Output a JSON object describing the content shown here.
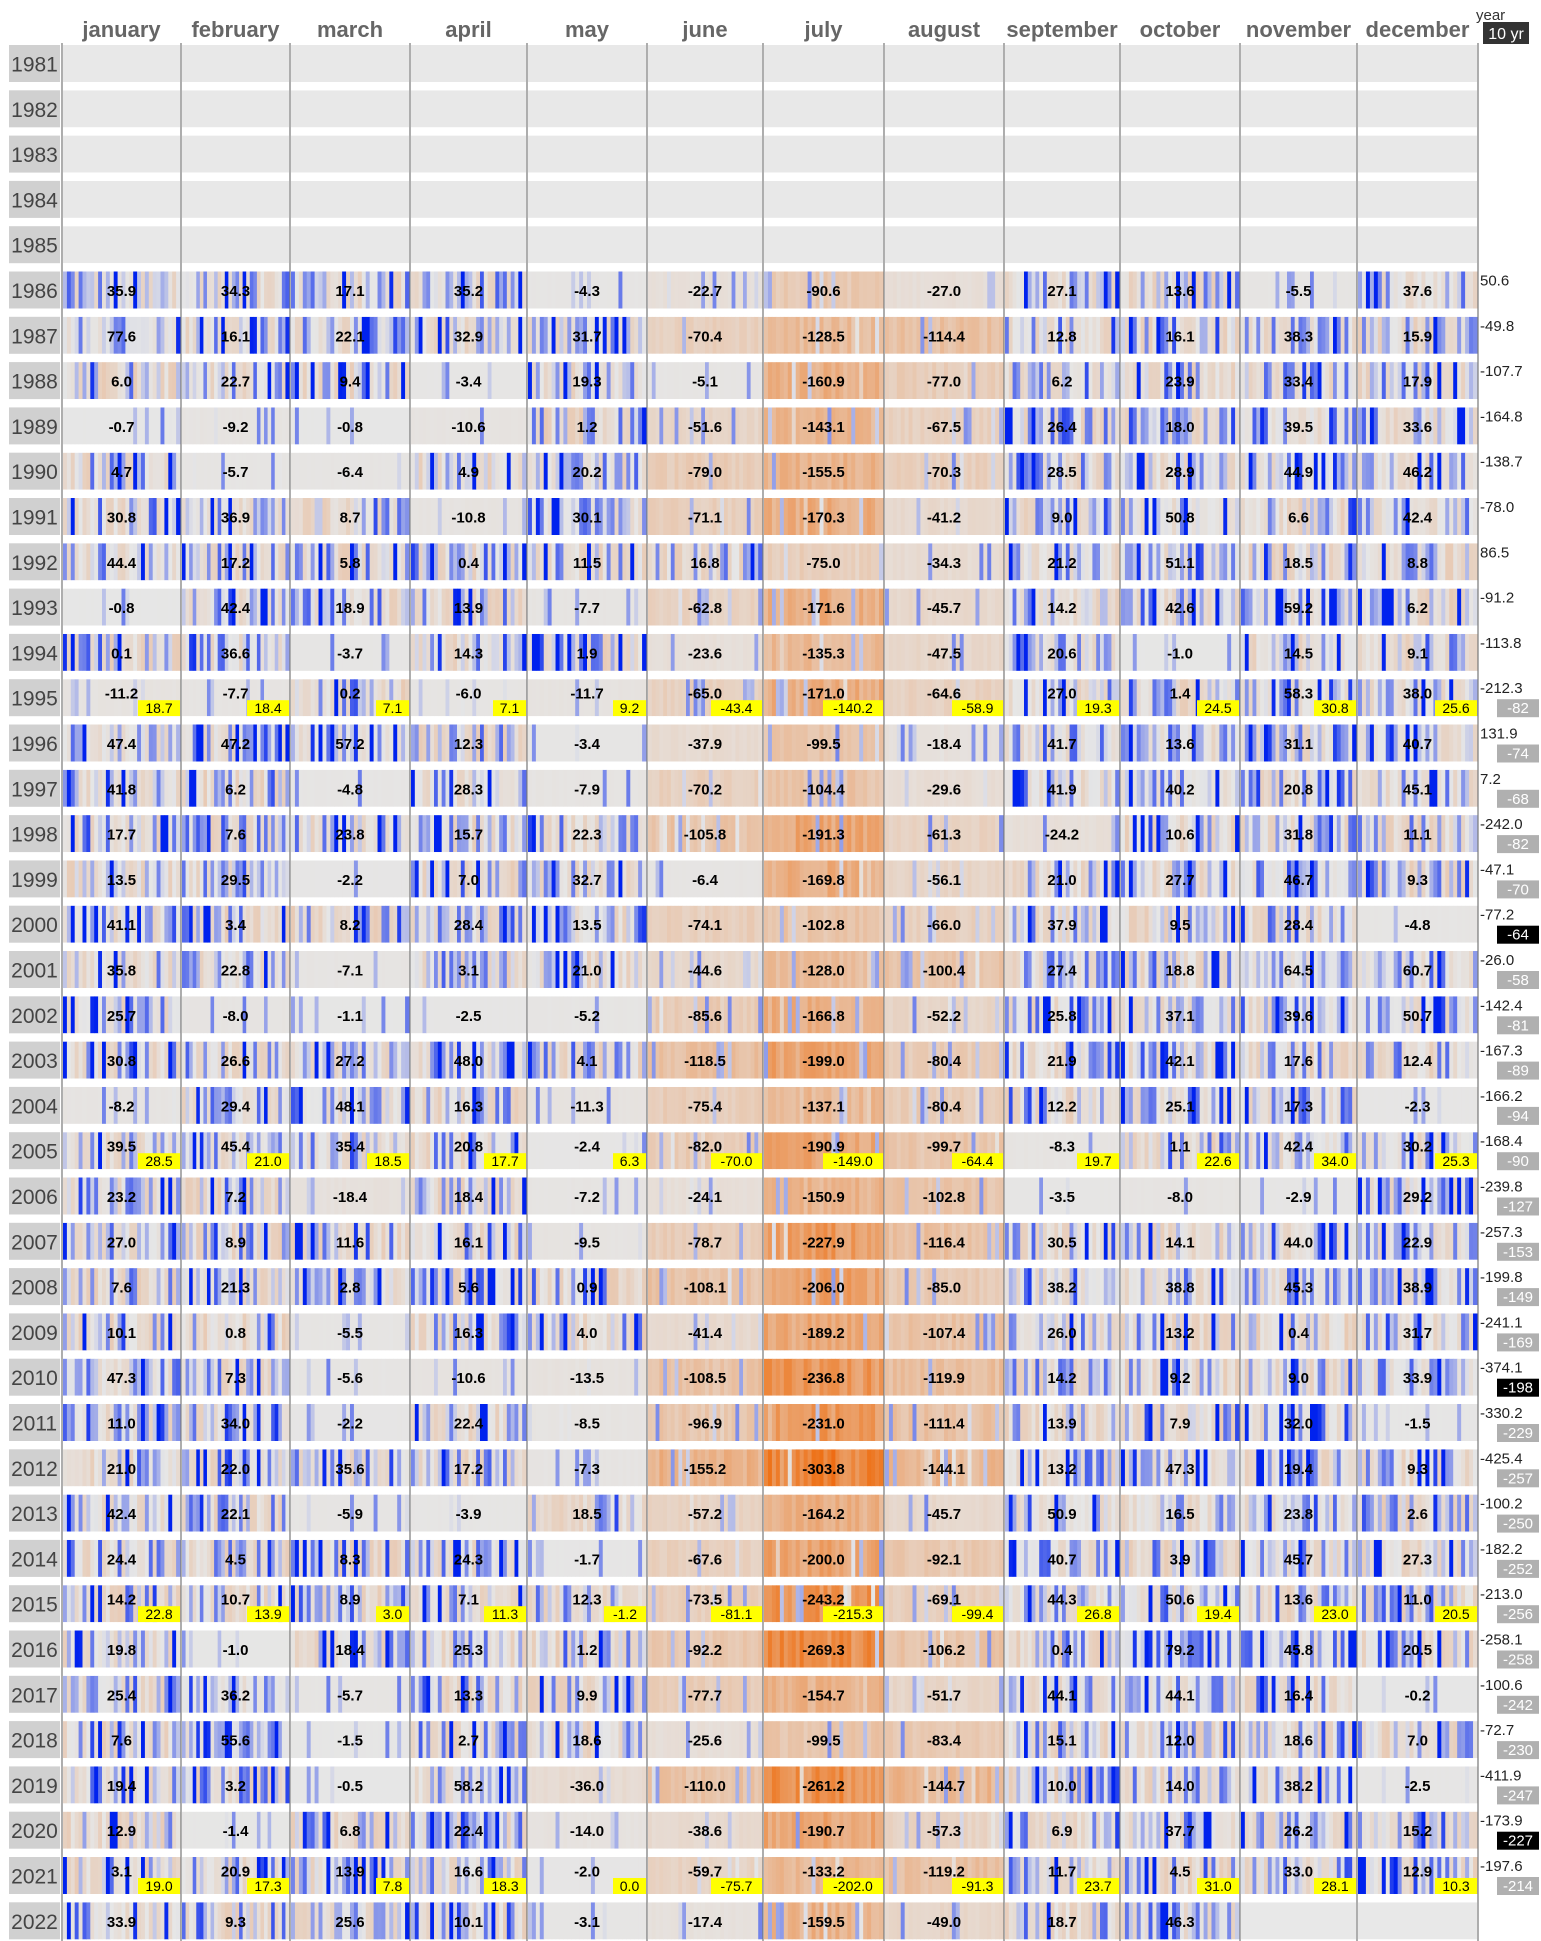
{
  "header": {
    "year_label": "year",
    "ten_yr_label": "10 yr"
  },
  "chart_data": {
    "type": "heatmap",
    "months": [
      "january",
      "february",
      "march",
      "april",
      "may",
      "june",
      "july",
      "august",
      "september",
      "october",
      "november",
      "december"
    ],
    "years": [
      1981,
      1982,
      1983,
      1984,
      1985,
      1986,
      1987,
      1988,
      1989,
      1990,
      1991,
      1992,
      1993,
      1994,
      1995,
      1996,
      1997,
      1998,
      1999,
      2000,
      2001,
      2002,
      2003,
      2004,
      2005,
      2006,
      2007,
      2008,
      2009,
      2010,
      2011,
      2012,
      2013,
      2014,
      2015,
      2016,
      2017,
      2018,
      2019,
      2020,
      2021,
      2022
    ],
    "values": [
      null,
      null,
      null,
      null,
      null,
      [
        "35.9",
        "34.3",
        "17.1",
        "35.2",
        "-4.3",
        "-22.7",
        "-90.6",
        "-27.0",
        "27.1",
        "13.6",
        "-5.5",
        "37.6"
      ],
      [
        "77.6",
        "16.1",
        "22.1",
        "32.9",
        "31.7",
        "-70.4",
        "-128.5",
        "-114.4",
        "12.8",
        "16.1",
        "38.3",
        "15.9"
      ],
      [
        "6.0",
        "22.7",
        "9.4",
        "-3.4",
        "19.3",
        "-5.1",
        "-160.9",
        "-77.0",
        "6.2",
        "23.9",
        "33.4",
        "17.9"
      ],
      [
        "-0.7",
        "-9.2",
        "-0.8",
        "-10.6",
        "1.2",
        "-51.6",
        "-143.1",
        "-67.5",
        "26.4",
        "18.0",
        "39.5",
        "33.6"
      ],
      [
        "4.7",
        "-5.7",
        "-6.4",
        "4.9",
        "20.2",
        "-79.0",
        "-155.5",
        "-70.3",
        "28.5",
        "28.9",
        "44.9",
        "46.2"
      ],
      [
        "30.8",
        "36.9",
        "8.7",
        "-10.8",
        "30.1",
        "-71.1",
        "-170.3",
        "-41.2",
        "9.0",
        "50.8",
        "6.6",
        "42.4"
      ],
      [
        "44.4",
        "17.2",
        "5.8",
        "0.4",
        "11.5",
        "16.8",
        "-75.0",
        "-34.3",
        "21.2",
        "51.1",
        "18.5",
        "8.8"
      ],
      [
        "-0.8",
        "42.4",
        "18.9",
        "13.9",
        "-7.7",
        "-62.8",
        "-171.6",
        "-45.7",
        "14.2",
        "42.6",
        "59.2",
        "6.2"
      ],
      [
        "0.1",
        "36.6",
        "-3.7",
        "14.3",
        "1.9",
        "-23.6",
        "-135.3",
        "-47.5",
        "20.6",
        "-1.0",
        "14.5",
        "9.1"
      ],
      [
        "-11.2",
        "-7.7",
        "0.2",
        "-6.0",
        "-11.7",
        "-65.0",
        "-171.0",
        "-64.6",
        "27.0",
        "1.4",
        "58.3",
        "38.0"
      ],
      [
        "47.4",
        "47.2",
        "57.2",
        "12.3",
        "-3.4",
        "-37.9",
        "-99.5",
        "-18.4",
        "41.7",
        "13.6",
        "31.1",
        "40.7"
      ],
      [
        "41.8",
        "6.2",
        "-4.8",
        "28.3",
        "-7.9",
        "-70.2",
        "-104.4",
        "-29.6",
        "41.9",
        "40.2",
        "20.8",
        "45.1"
      ],
      [
        "17.7",
        "7.6",
        "23.8",
        "15.7",
        "22.3",
        "-105.8",
        "-191.3",
        "-61.3",
        "-24.2",
        "10.6",
        "31.8",
        "11.1"
      ],
      [
        "13.5",
        "29.5",
        "-2.2",
        "7.0",
        "32.7",
        "-6.4",
        "-169.8",
        "-56.1",
        "21.0",
        "27.7",
        "46.7",
        "9.3"
      ],
      [
        "41.1",
        "3.4",
        "8.2",
        "28.4",
        "13.5",
        "-74.1",
        "-102.8",
        "-66.0",
        "37.9",
        "9.5",
        "28.4",
        "-4.8"
      ],
      [
        "35.8",
        "22.8",
        "-7.1",
        "3.1",
        "21.0",
        "-44.6",
        "-128.0",
        "-100.4",
        "27.4",
        "18.8",
        "64.5",
        "60.7"
      ],
      [
        "25.7",
        "-8.0",
        "-1.1",
        "-2.5",
        "-5.2",
        "-85.6",
        "-166.8",
        "-52.2",
        "25.8",
        "37.1",
        "39.6",
        "50.7"
      ],
      [
        "30.8",
        "26.6",
        "27.2",
        "48.0",
        "4.1",
        "-118.5",
        "-199.0",
        "-80.4",
        "21.9",
        "42.1",
        "17.6",
        "12.4"
      ],
      [
        "-8.2",
        "29.4",
        "48.1",
        "16.3",
        "-11.3",
        "-75.4",
        "-137.1",
        "-80.4",
        "12.2",
        "25.1",
        "17.3",
        "-2.3"
      ],
      [
        "39.5",
        "45.4",
        "35.4",
        "20.8",
        "-2.4",
        "-82.0",
        "-190.9",
        "-99.7",
        "-8.3",
        "1.1",
        "42.4",
        "30.2"
      ],
      [
        "23.2",
        "7.2",
        "-18.4",
        "18.4",
        "-7.2",
        "-24.1",
        "-150.9",
        "-102.8",
        "-3.5",
        "-8.0",
        "-2.9",
        "29.2"
      ],
      [
        "27.0",
        "8.9",
        "11.6",
        "16.1",
        "-9.5",
        "-78.7",
        "-227.9",
        "-116.4",
        "30.5",
        "14.1",
        "44.0",
        "22.9"
      ],
      [
        "7.6",
        "21.3",
        "2.8",
        "5.6",
        "0.9",
        "-108.1",
        "-206.0",
        "-85.0",
        "38.2",
        "38.8",
        "45.3",
        "38.9"
      ],
      [
        "10.1",
        "0.8",
        "-5.5",
        "16.3",
        "4.0",
        "-41.4",
        "-189.2",
        "-107.4",
        "26.0",
        "13.2",
        "0.4",
        "31.7"
      ],
      [
        "47.3",
        "7.3",
        "-5.6",
        "-10.6",
        "-13.5",
        "-108.5",
        "-236.8",
        "-119.9",
        "14.2",
        "9.2",
        "9.0",
        "33.9"
      ],
      [
        "11.0",
        "34.0",
        "-2.2",
        "22.4",
        "-8.5",
        "-96.9",
        "-231.0",
        "-111.4",
        "13.9",
        "7.9",
        "32.0",
        "-1.5"
      ],
      [
        "21.0",
        "22.0",
        "35.6",
        "17.2",
        "-7.3",
        "-155.2",
        "-303.8",
        "-144.1",
        "13.2",
        "47.3",
        "19.4",
        "9.3"
      ],
      [
        "42.4",
        "22.1",
        "-5.9",
        "-3.9",
        "18.5",
        "-57.2",
        "-164.2",
        "-45.7",
        "50.9",
        "16.5",
        "23.8",
        "2.6"
      ],
      [
        "24.4",
        "4.5",
        "8.3",
        "24.3",
        "-1.7",
        "-67.6",
        "-200.0",
        "-92.1",
        "40.7",
        "3.9",
        "45.7",
        "27.3"
      ],
      [
        "14.2",
        "10.7",
        "8.9",
        "7.1",
        "12.3",
        "-73.5",
        "-243.2",
        "-69.1",
        "44.3",
        "50.6",
        "13.6",
        "11.0"
      ],
      [
        "19.8",
        "-1.0",
        "18.4",
        "25.3",
        "1.2",
        "-92.2",
        "-269.3",
        "-106.2",
        "0.4",
        "79.2",
        "45.8",
        "20.5"
      ],
      [
        "25.4",
        "36.2",
        "-5.7",
        "13.3",
        "9.9",
        "-77.7",
        "-154.7",
        "-51.7",
        "44.1",
        "44.1",
        "16.4",
        "-0.2"
      ],
      [
        "7.6",
        "55.6",
        "-1.5",
        "2.7",
        "18.6",
        "-25.6",
        "-99.5",
        "-83.4",
        "15.1",
        "12.0",
        "18.6",
        "7.0"
      ],
      [
        "19.4",
        "3.2",
        "-0.5",
        "58.2",
        "-36.0",
        "-110.0",
        "-261.2",
        "-144.7",
        "10.0",
        "14.0",
        "38.2",
        "-2.5"
      ],
      [
        "12.9",
        "-1.4",
        "6.8",
        "22.4",
        "-14.0",
        "-38.6",
        "-190.7",
        "-57.3",
        "6.9",
        "37.7",
        "26.2",
        "15.2"
      ],
      [
        "3.1",
        "20.9",
        "13.9",
        "16.6",
        "-2.0",
        "-59.7",
        "-133.2",
        "-119.2",
        "11.7",
        "4.5",
        "33.0",
        "12.9"
      ],
      [
        "33.9",
        "9.3",
        "25.6",
        "10.1",
        "-3.1",
        "-17.4",
        "-159.5",
        "-49.0",
        "18.7",
        "46.3",
        null,
        null
      ]
    ],
    "decade_averages": {
      "1995": [
        "18.7",
        "18.4",
        "7.1",
        "7.1",
        "9.2",
        "-43.4",
        "-140.2",
        "-58.9",
        "19.3",
        "24.5",
        "30.8",
        "25.6"
      ],
      "2005": [
        "28.5",
        "21.0",
        "18.5",
        "17.7",
        "6.3",
        "-70.0",
        "-149.0",
        "-64.4",
        "19.7",
        "22.6",
        "34.0",
        "25.3"
      ],
      "2015": [
        "22.8",
        "13.9",
        "3.0",
        "11.3",
        "-1.2",
        "-81.1",
        "-215.3",
        "-99.4",
        "26.8",
        "19.4",
        "23.0",
        "20.5"
      ],
      "2021": [
        "19.0",
        "17.3",
        "7.8",
        "18.3",
        "0.0",
        "-75.7",
        "-202.0",
        "-91.3",
        "23.7",
        "31.0",
        "28.1",
        "10.3"
      ]
    },
    "year_totals": [
      null,
      null,
      null,
      null,
      null,
      "50.6",
      "-49.8",
      "-107.7",
      "-164.8",
      "-138.7",
      "-78.0",
      "86.5",
      "-91.2",
      "-113.8",
      "-212.3",
      "131.9",
      "7.2",
      "-242.0",
      "-47.1",
      "-77.2",
      "-26.0",
      "-142.4",
      "-167.3",
      "-166.2",
      "-168.4",
      "-239.8",
      "-257.3",
      "-199.8",
      "-241.1",
      "-374.1",
      "-330.2",
      "-425.4",
      "-100.2",
      "-182.2",
      "-213.0",
      "-258.1",
      "-100.6",
      "-72.7",
      "-411.9",
      "-173.9",
      "-197.6",
      null
    ],
    "ten_year_avg": [
      null,
      null,
      null,
      null,
      null,
      null,
      null,
      null,
      null,
      null,
      null,
      null,
      null,
      null,
      "-82",
      "-74",
      "-68",
      "-82",
      "-70",
      "-64",
      "-58",
      "-81",
      "-89",
      "-94",
      "-90",
      "-127",
      "-153",
      "-149",
      "-169",
      "-198",
      "-229",
      "-257",
      "-250",
      "-252",
      "-256",
      "-258",
      "-242",
      "-230",
      "-247",
      "-227",
      "-214",
      null
    ],
    "highlighted_ten_year": [
      "-64",
      "-198",
      "-227"
    ],
    "color_scale": {
      "positive": "#0022ee",
      "neutral": "#e6e6e6",
      "negative": "#ff3300",
      "decade_label_bg": "#ffff00"
    }
  }
}
